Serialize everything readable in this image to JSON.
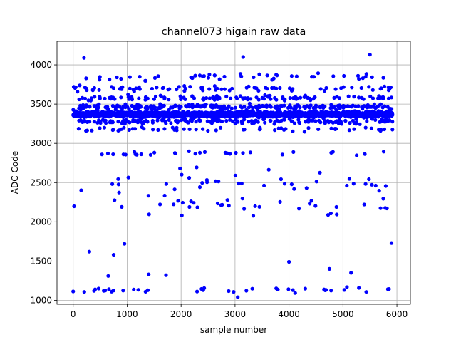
{
  "chart_data": {
    "type": "scatter",
    "title": "channel073 higain raw data",
    "xlabel": "sample number",
    "ylabel": "ADC Code",
    "xlim": [
      -300,
      6250
    ],
    "ylim": [
      950,
      4300
    ],
    "xticks": [
      0,
      1000,
      2000,
      3000,
      4000,
      5000,
      6000
    ],
    "yticks": [
      1000,
      1500,
      2000,
      2500,
      3000,
      3500,
      4000
    ],
    "grid": true,
    "marker_color": "#0000ff",
    "sample_count": 5920,
    "clusters": [
      {
        "center": 3370,
        "spread": 30,
        "note": "dense baseline band"
      },
      {
        "center": 3465,
        "spread": 25
      },
      {
        "center": 3280,
        "spread": 25
      },
      {
        "center": 3580,
        "spread": 25
      },
      {
        "center": 3180,
        "spread": 25
      },
      {
        "center": 3700,
        "spread": 30
      },
      {
        "center": 3850,
        "spread": 40
      },
      {
        "center": 2870,
        "spread": 20
      },
      {
        "center": 2500,
        "spread": 150
      },
      {
        "center": 2200,
        "spread": 120
      },
      {
        "center": 1130,
        "spread": 25
      }
    ],
    "outliers": [
      {
        "x": 200,
        "y": 4090
      },
      {
        "x": 3150,
        "y": 4100
      },
      {
        "x": 5500,
        "y": 4130
      },
      {
        "x": 300,
        "y": 1620
      },
      {
        "x": 750,
        "y": 1580
      },
      {
        "x": 950,
        "y": 1720
      },
      {
        "x": 4000,
        "y": 1490
      },
      {
        "x": 3050,
        "y": 1040
      },
      {
        "x": 650,
        "y": 1310
      },
      {
        "x": 1400,
        "y": 1330
      },
      {
        "x": 1720,
        "y": 1320
      },
      {
        "x": 4750,
        "y": 1400
      },
      {
        "x": 5150,
        "y": 1350
      },
      {
        "x": 5900,
        "y": 1730
      }
    ]
  }
}
